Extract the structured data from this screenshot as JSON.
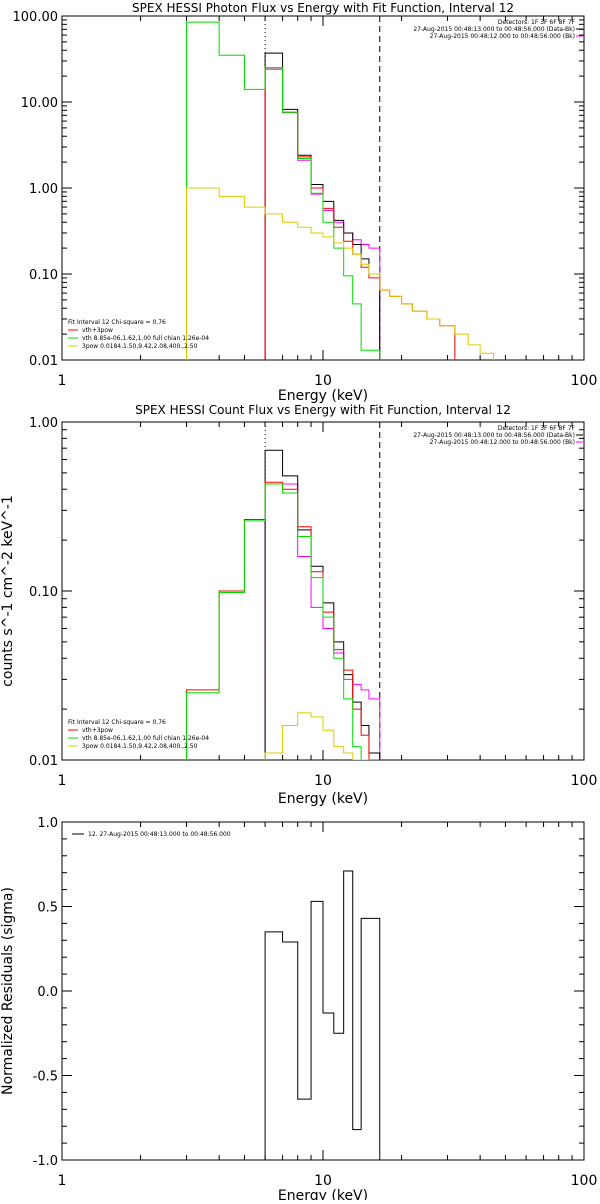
{
  "chart_data": [
    {
      "type": "line",
      "step": true,
      "title": "SPEX HESSI Photon Flux vs Energy with Fit Function, Interval 12",
      "xlabel": "Energy (keV)",
      "ylabel": "",
      "xscale": "log",
      "yscale": "log",
      "xlim": [
        1,
        100
      ],
      "ylim": [
        0.01,
        100
      ],
      "xticks": [
        {
          "v": 1,
          "t": "1"
        },
        {
          "v": 10,
          "t": "10"
        },
        {
          "v": 100,
          "t": "100"
        }
      ],
      "yticks": [
        {
          "v": 0.01,
          "t": "0.01"
        },
        {
          "v": 0.1,
          "t": "0.10"
        },
        {
          "v": 1,
          "t": "1.00"
        },
        {
          "v": 10,
          "t": "10.00"
        },
        {
          "v": 100,
          "t": "100.00"
        }
      ],
      "vlines": [
        {
          "x": 6.0,
          "style": "dotted"
        },
        {
          "x": 16.5,
          "style": "dashed"
        }
      ],
      "info_lines": [
        "Detectors: 1F 3F 6F 8F 7F",
        "27-Aug-2015 00:48:13.000 to 00:48:56.000 (Data-Bk)",
        "27-Aug-2015 00:48:12.000 to 00:48:56.000 (Bk)"
      ],
      "legend": [
        "Fit Interval 12   Chi-square = 0.76",
        "vth+3pow",
        "vth 8.85e-06,1.62,1.00  full chian 1.26e-04",
        "3pow 0.0184,1.50,9.42,2.08,400.,2.50"
      ],
      "series": [
        {
          "name": "",
          "color": "#ff00ff",
          "edges": [
            6.0,
            7.0,
            8.0,
            9.0,
            10.0,
            11.0,
            12.0,
            13.0,
            14.0,
            15.0,
            16.5
          ],
          "values": [
            24,
            7.5,
            2.1,
            0.85,
            0.55,
            0.4,
            0.3,
            0.25,
            0.22,
            0.2
          ]
        },
        {
          "name": "",
          "color": "#000000",
          "edges": [
            6.0,
            7.0,
            8.0,
            9.0,
            10.0,
            11.0,
            12.0,
            13.0,
            14.0,
            15.0,
            16.5
          ],
          "values": [
            37,
            8.2,
            2.4,
            1.1,
            0.7,
            0.42,
            0.3,
            0.22,
            0.15,
            0.1
          ]
        },
        {
          "name": "vth+3pow",
          "color": "#ff0000",
          "edges": [
            6.0,
            7.0,
            8.0,
            9.0,
            10.0,
            11.0,
            12.0,
            13.0,
            14.0,
            15.0,
            16.5,
            18,
            20,
            22,
            25,
            28,
            32
          ],
          "values": [
            25,
            7.6,
            2.3,
            1.0,
            0.58,
            0.35,
            0.24,
            0.17,
            0.12,
            0.09,
            0.065,
            0.055,
            0.045,
            0.037,
            0.03,
            0.025
          ]
        },
        {
          "name": "vth 8.85e-06,1.62,1.00  full chian 1.26e-04",
          "color": "#00dd00",
          "edges": [
            3.0,
            4.0,
            5.0,
            6.0,
            7.0,
            8.0,
            9.0,
            10.0,
            11.0,
            12.0,
            13.0,
            14.0,
            15.0,
            16.5
          ],
          "values": [
            85,
            35,
            14,
            25,
            7.6,
            2.2,
            0.87,
            0.4,
            0.2,
            0.095,
            0.045,
            0.013,
            0.013
          ]
        },
        {
          "name": "3pow 0.0184,1.50,9.42,2.08,400.,2.50",
          "color": "#ddcc00",
          "edges": [
            3.0,
            4.0,
            5.0,
            6.0,
            7.0,
            8.0,
            9.0,
            10.0,
            11.0,
            12.0,
            13.0,
            14.0,
            15.0,
            16.5,
            18,
            20,
            22,
            25,
            28,
            32,
            36,
            40,
            45
          ],
          "values": [
            1.0,
            0.8,
            0.6,
            0.5,
            0.4,
            0.35,
            0.3,
            0.27,
            0.23,
            0.2,
            0.17,
            0.13,
            0.1,
            0.065,
            0.055,
            0.045,
            0.037,
            0.03,
            0.025,
            0.02,
            0.015,
            0.012
          ]
        }
      ]
    },
    {
      "type": "line",
      "step": true,
      "title": "SPEX HESSI Count Flux vs Energy with Fit Function, Interval 12",
      "xlabel": "Energy (keV)",
      "ylabel": "counts s^-1 cm^-2 keV^-1",
      "xscale": "log",
      "yscale": "log",
      "xlim": [
        1,
        100
      ],
      "ylim": [
        0.01,
        1
      ],
      "xticks": [
        {
          "v": 1,
          "t": "1"
        },
        {
          "v": 10,
          "t": "10"
        },
        {
          "v": 100,
          "t": "100"
        }
      ],
      "yticks": [
        {
          "v": 0.01,
          "t": "0.01"
        },
        {
          "v": 0.1,
          "t": "0.10"
        },
        {
          "v": 1,
          "t": "1.00"
        }
      ],
      "vlines": [
        {
          "x": 6.0,
          "style": "dotted"
        },
        {
          "x": 16.5,
          "style": "dashed"
        }
      ],
      "info_lines": [
        "Detectors: 1F 3F 6F 8F 7F",
        "27-Aug-2015 00:48:13.000 to 00:48:56.000 (Data-Bk)",
        "27-Aug-2015 00:48:12.000 to 00:48:56.000 (Bk)"
      ],
      "legend": [
        "Fit Interval 12   Chi-square = 0.76",
        "vth+3pow",
        "vth 8.85e-06,1.62,1.00  full chian 1.26e-04",
        "3pow 0.0184,1.50,9.42,2.08,400.,2.50"
      ],
      "series": [
        {
          "name": "",
          "color": "#ff00ff",
          "edges": [
            6.0,
            7.0,
            8.0,
            9.0,
            10.0,
            11.0,
            12.0,
            13.0,
            14.0,
            15.0,
            16.5
          ],
          "values": [
            0.43,
            0.43,
            0.16,
            0.08,
            0.06,
            0.043,
            0.03,
            0.028,
            0.026,
            0.023
          ]
        },
        {
          "name": "",
          "color": "#000000",
          "edges": [
            6.0,
            7.0,
            8.0,
            9.0,
            10.0,
            11.0,
            12.0,
            13.0,
            14.0,
            15.0,
            16.5
          ],
          "values": [
            0.68,
            0.48,
            0.23,
            0.14,
            0.085,
            0.05,
            0.032,
            0.022,
            0.016,
            0.011
          ]
        },
        {
          "name": "vth+3pow",
          "color": "#ff0000",
          "edges": [
            3.0,
            4.0,
            5.0,
            6.0,
            7.0,
            8.0,
            9.0,
            10.0,
            11.0,
            12.0,
            13.0,
            14.0,
            15.0,
            16.5
          ],
          "values": [
            0.026,
            0.1,
            0.265,
            0.44,
            0.4,
            0.24,
            0.13,
            0.075,
            0.045,
            0.034,
            0.02,
            0.014,
            0.01
          ]
        },
        {
          "name": "vth 8.85e-06,1.62,1.00  full chian 1.26e-04",
          "color": "#00dd00",
          "edges": [
            3.0,
            4.0,
            5.0,
            6.0,
            7.0,
            8.0,
            9.0,
            10.0,
            11.0,
            12.0,
            13.0,
            14.0,
            15.0
          ],
          "values": [
            0.025,
            0.098,
            0.26,
            0.43,
            0.38,
            0.21,
            0.12,
            0.07,
            0.04,
            0.023,
            0.012,
            0.01
          ]
        },
        {
          "name": "3pow 0.0184,1.50,9.42,2.08,400.,2.50",
          "color": "#ddcc00",
          "edges": [
            6.0,
            7.0,
            8.0,
            9.0,
            10.0,
            11.0,
            12.0,
            13.0,
            14.0,
            15.0
          ],
          "values": [
            0.011,
            0.016,
            0.019,
            0.018,
            0.015,
            0.012,
            0.011,
            0.01,
            0.01
          ]
        }
      ]
    },
    {
      "type": "line",
      "step": true,
      "title": "",
      "xlabel": "Energy (keV)",
      "ylabel": "Normalized Residuals (sigma)",
      "xscale": "log",
      "yscale": "linear",
      "xlim": [
        1,
        100
      ],
      "ylim": [
        -1.0,
        1.0
      ],
      "xticks": [
        {
          "v": 1,
          "t": "1"
        },
        {
          "v": 10,
          "t": "10"
        },
        {
          "v": 100,
          "t": "100"
        }
      ],
      "yticks": [
        {
          "v": -1.0,
          "t": "-1.0"
        },
        {
          "v": -0.5,
          "t": "-0.5"
        },
        {
          "v": 0.0,
          "t": "0.0"
        },
        {
          "v": 0.5,
          "t": "0.5"
        },
        {
          "v": 1.0,
          "t": "1.0"
        }
      ],
      "legend": [
        "12. 27-Aug-2015 00:48:13.000 to 00:48:56.000"
      ],
      "series": [
        {
          "name": "12. 27-Aug-2015 00:48:13.000 to 00:48:56.000",
          "color": "#000000",
          "edges": [
            6.0,
            7.0,
            8.0,
            9.0,
            10.0,
            11.0,
            12.0,
            13.0,
            14.0,
            15.0,
            16.5
          ],
          "values": [
            0.35,
            0.29,
            -0.64,
            0.53,
            -0.13,
            -0.25,
            0.71,
            -0.82,
            0.43,
            0.43
          ]
        }
      ]
    }
  ]
}
